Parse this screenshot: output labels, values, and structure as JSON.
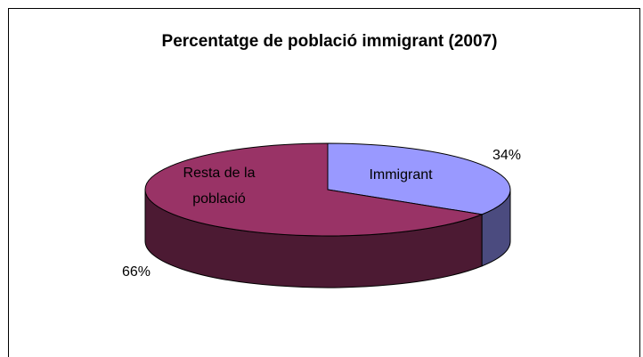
{
  "chart_data": {
    "type": "pie",
    "title": "Percentatge de població immigrant (2007)",
    "categories": [
      "Immigrant",
      "Resta de la població"
    ],
    "values": [
      34,
      66
    ],
    "slice_labels": [
      "Immigrant",
      "Resta de la població"
    ],
    "slice_label_lines": [
      [
        "Immigrant"
      ],
      [
        "Resta de la",
        "població"
      ]
    ],
    "percent_labels": [
      "34%",
      "66%"
    ],
    "colors": {
      "Immigrant": {
        "top": "#9999ff",
        "side": "#4b4b7f"
      },
      "Resta de la població": {
        "top": "#993366",
        "side": "#4c1a33"
      }
    },
    "legend": "none",
    "style": "3d"
  }
}
